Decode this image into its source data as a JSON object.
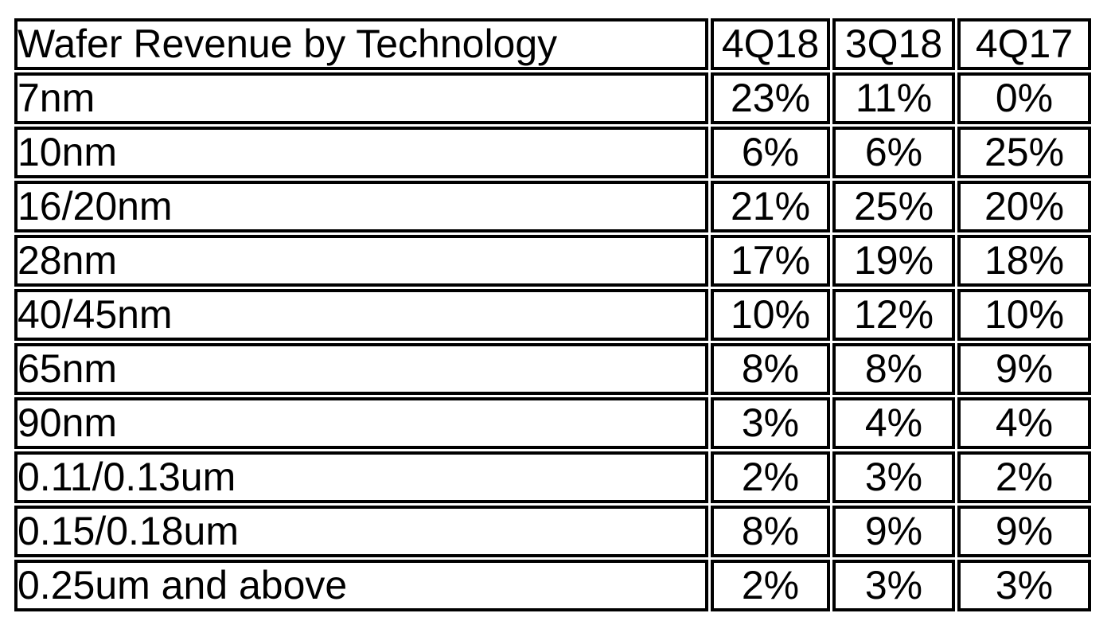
{
  "chart_data": {
    "type": "table",
    "title": "Wafer Revenue by Technology",
    "columns": [
      "4Q18",
      "3Q18",
      "4Q17"
    ],
    "rows": [
      {
        "label": "7nm",
        "values": [
          "23%",
          "11%",
          "0%"
        ]
      },
      {
        "label": "10nm",
        "values": [
          "6%",
          "6%",
          "25%"
        ]
      },
      {
        "label": "16/20nm",
        "values": [
          "21%",
          "25%",
          "20%"
        ]
      },
      {
        "label": "28nm",
        "values": [
          "17%",
          "19%",
          "18%"
        ]
      },
      {
        "label": "40/45nm",
        "values": [
          "10%",
          "12%",
          "10%"
        ]
      },
      {
        "label": "65nm",
        "values": [
          "8%",
          "8%",
          "9%"
        ]
      },
      {
        "label": "90nm",
        "values": [
          "3%",
          "4%",
          "4%"
        ]
      },
      {
        "label": "0.11/0.13um",
        "values": [
          "2%",
          "3%",
          "2%"
        ]
      },
      {
        "label": "0.15/0.18um",
        "values": [
          "8%",
          "9%",
          "9%"
        ]
      },
      {
        "label": "0.25um and above",
        "values": [
          "2%",
          "3%",
          "3%"
        ]
      }
    ]
  },
  "colors": {
    "header_bg": "#333333",
    "header_text": "#ffffff",
    "border": "#000000",
    "cell_bg": "#ffffff",
    "text": "#000000",
    "page_bg": "#ffffff"
  }
}
